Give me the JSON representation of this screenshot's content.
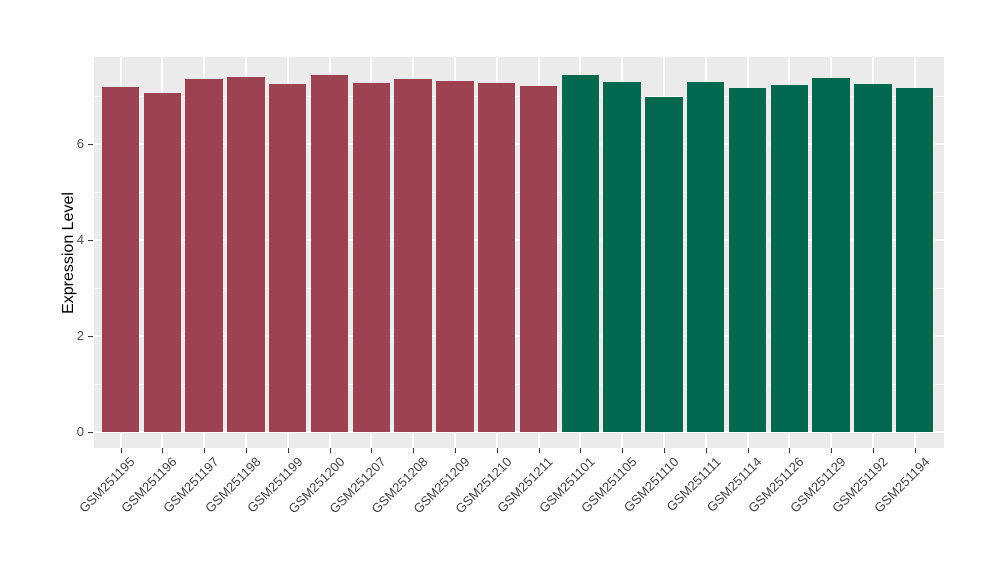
{
  "chart_data": {
    "type": "bar",
    "title": "",
    "xlabel": "",
    "ylabel": "Expression Level",
    "yticks": [
      0,
      2,
      4,
      6
    ],
    "minor_yticks": [
      1,
      3,
      5,
      7
    ],
    "ylim": [
      0,
      7.8
    ],
    "grid": true,
    "legend_position": "none",
    "panel_background_color": "#EBEBEB",
    "gridline_color": "#FFFFFF",
    "groups": {
      "group1": {
        "color": "#9D4253"
      },
      "group2": {
        "color": "#00694D"
      }
    },
    "bars": [
      {
        "label": "GSM251195",
        "value": 7.19,
        "group": "group1"
      },
      {
        "label": "GSM251196",
        "value": 7.06,
        "group": "group1"
      },
      {
        "label": "GSM251197",
        "value": 7.36,
        "group": "group1"
      },
      {
        "label": "GSM251198",
        "value": 7.4,
        "group": "group1"
      },
      {
        "label": "GSM251199",
        "value": 7.26,
        "group": "group1"
      },
      {
        "label": "GSM251200",
        "value": 7.44,
        "group": "group1"
      },
      {
        "label": "GSM251207",
        "value": 7.27,
        "group": "group1"
      },
      {
        "label": "GSM251208",
        "value": 7.36,
        "group": "group1"
      },
      {
        "label": "GSM251209",
        "value": 7.32,
        "group": "group1"
      },
      {
        "label": "GSM251210",
        "value": 7.28,
        "group": "group1"
      },
      {
        "label": "GSM251211",
        "value": 7.21,
        "group": "group1"
      },
      {
        "label": "GSM251101",
        "value": 7.44,
        "group": "group2"
      },
      {
        "label": "GSM251105",
        "value": 7.29,
        "group": "group2"
      },
      {
        "label": "GSM251110",
        "value": 6.97,
        "group": "group2"
      },
      {
        "label": "GSM251111",
        "value": 7.29,
        "group": "group2"
      },
      {
        "label": "GSM251114",
        "value": 7.16,
        "group": "group2"
      },
      {
        "label": "GSM251126",
        "value": 7.22,
        "group": "group2"
      },
      {
        "label": "GSM251129",
        "value": 7.37,
        "group": "group2"
      },
      {
        "label": "GSM251192",
        "value": 7.26,
        "group": "group2"
      },
      {
        "label": "GSM251194",
        "value": 7.17,
        "group": "group2"
      }
    ]
  }
}
